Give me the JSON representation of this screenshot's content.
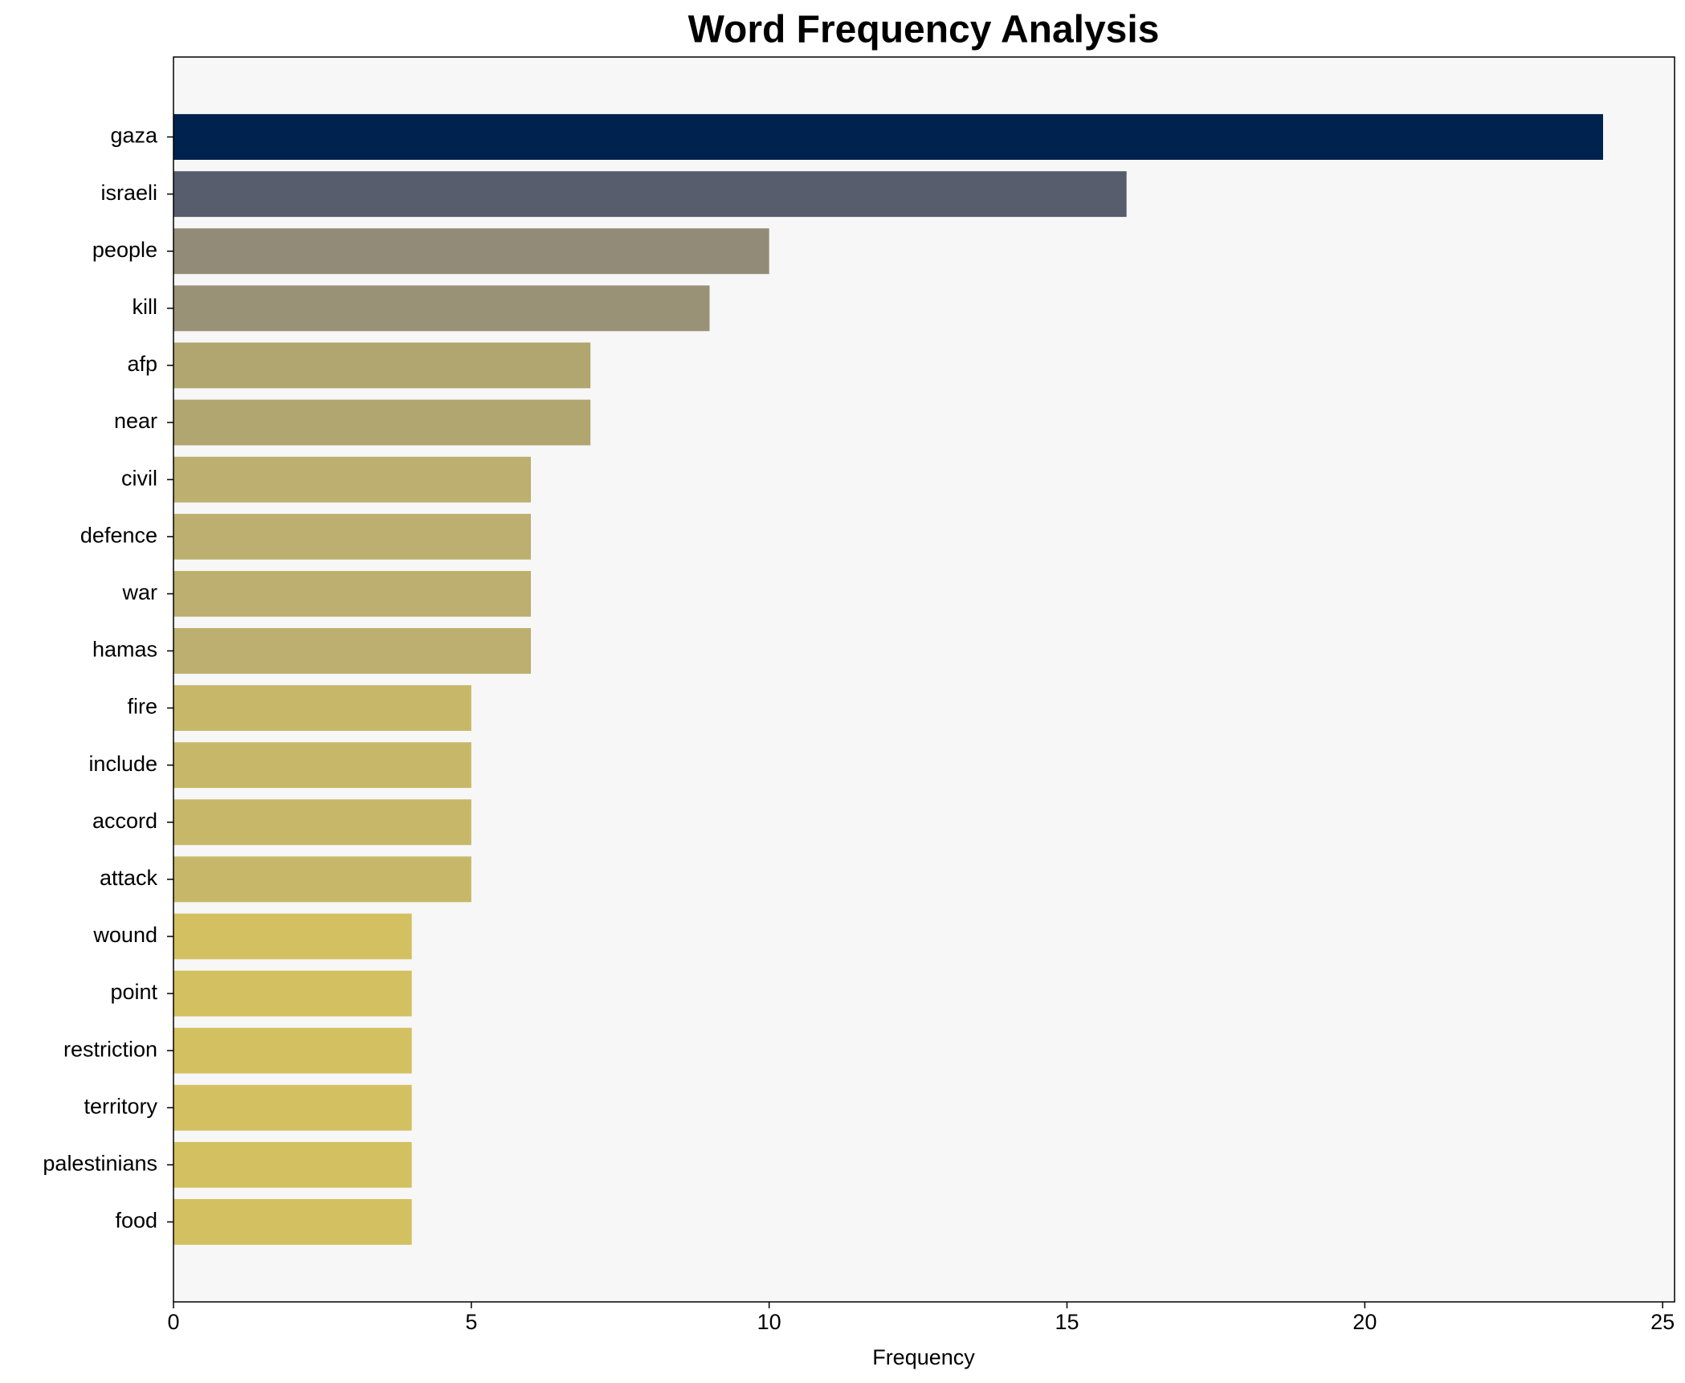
{
  "chart_data": {
    "type": "barh",
    "title": "Word Frequency Analysis",
    "x_label": "Frequency",
    "categories": [
      "gaza",
      "israeli",
      "people",
      "kill",
      "afp",
      "near",
      "civil",
      "defence",
      "war",
      "hamas",
      "fire",
      "include",
      "accord",
      "attack",
      "wound",
      "point",
      "restriction",
      "territory",
      "palestinians",
      "food"
    ],
    "values": [
      24,
      16,
      10,
      9,
      7,
      7,
      6,
      6,
      6,
      6,
      5,
      5,
      5,
      5,
      4,
      4,
      4,
      4,
      4,
      4
    ],
    "colors": [
      "#00224e",
      "#575d6d",
      "#928b77",
      "#9a9276",
      "#b1a570",
      "#b1a570",
      "#bcaf6f",
      "#bcaf6f",
      "#bcaf6f",
      "#bcaf6f",
      "#c7b869",
      "#c7b869",
      "#c7b869",
      "#c7b869",
      "#d3c060",
      "#d3c060",
      "#d3c060",
      "#d3c060",
      "#d3c060",
      "#d3c060"
    ],
    "xlim": [
      0,
      25.2
    ],
    "xticks": [
      0,
      5,
      10,
      15,
      20,
      25
    ]
  }
}
